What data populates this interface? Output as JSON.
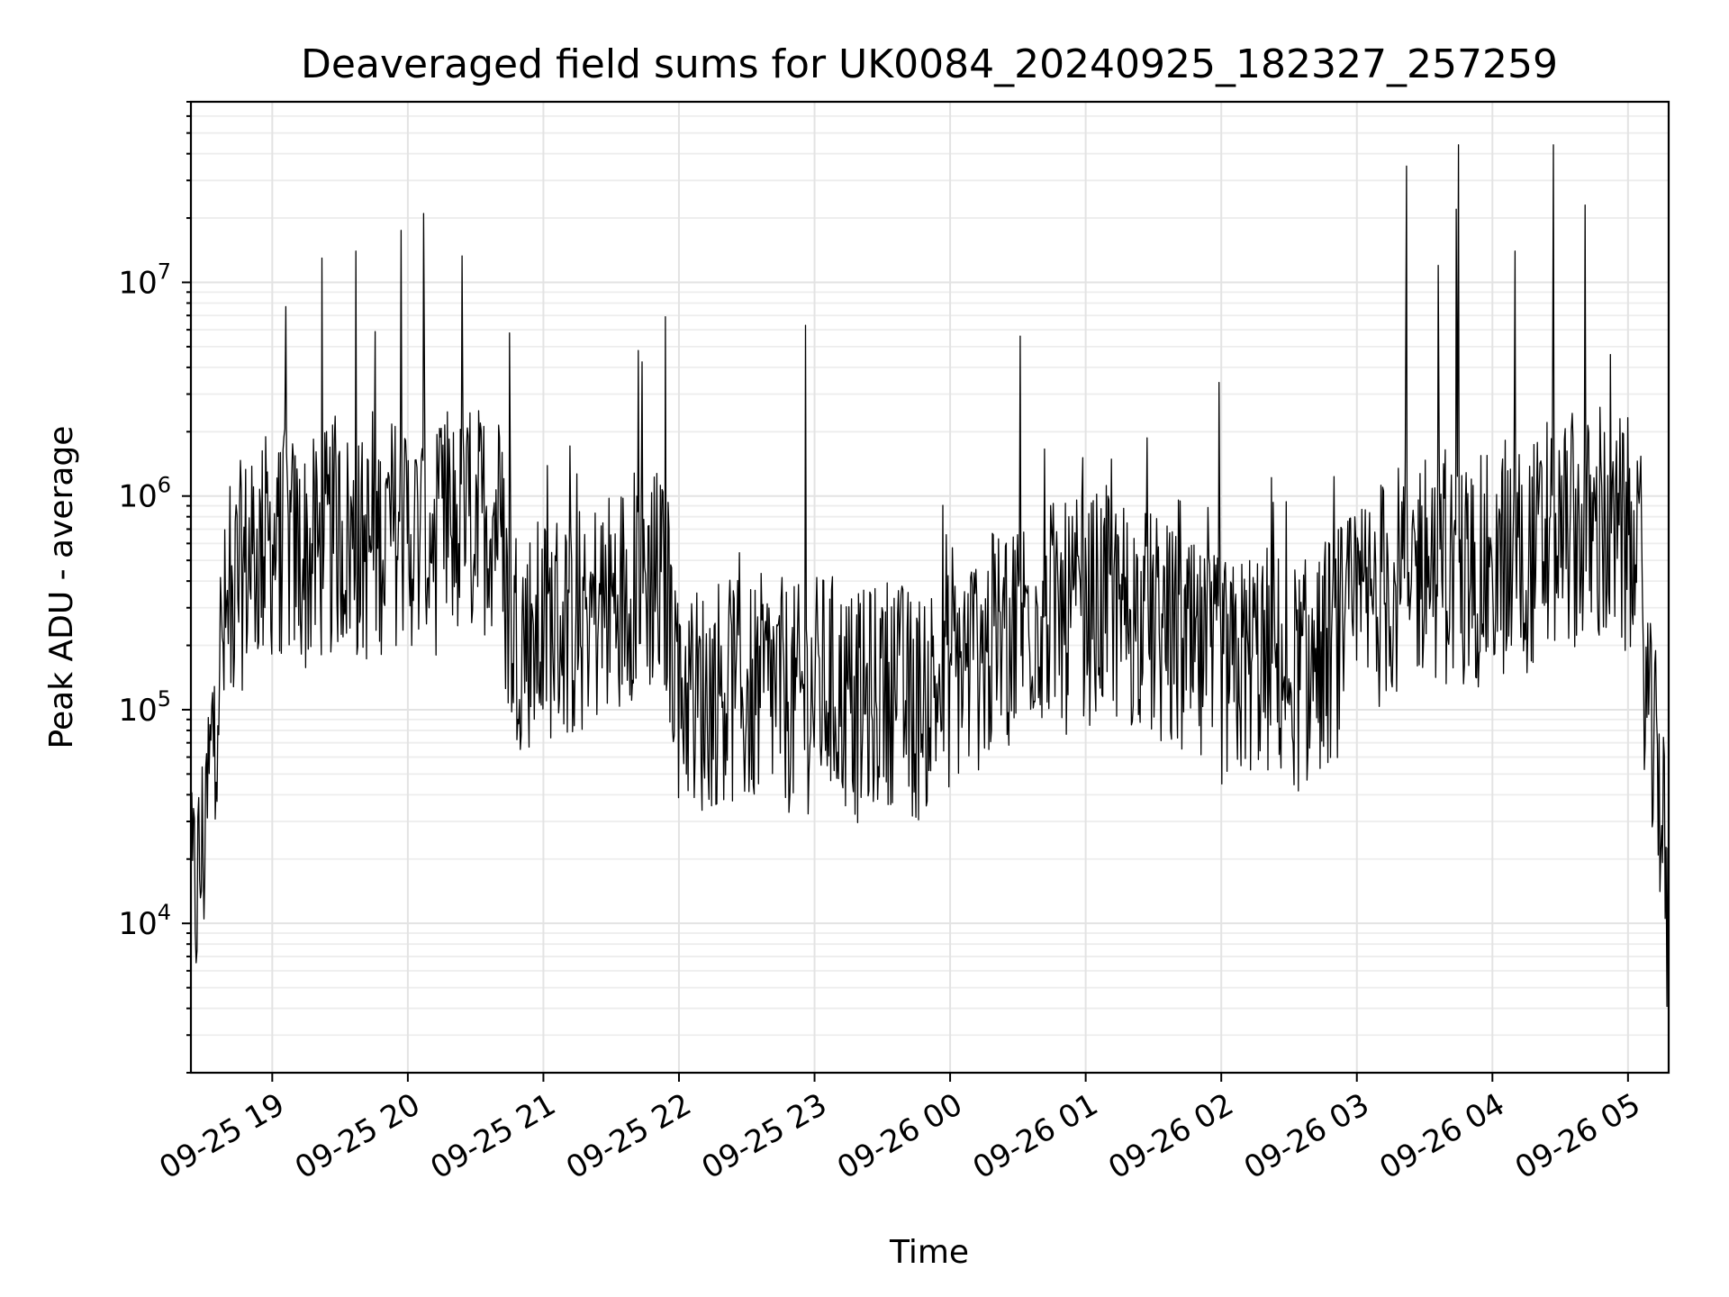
{
  "chart_data": {
    "type": "line",
    "title": "Deaveraged field sums for UK0084_20240925_182327_257259",
    "xlabel": "Time",
    "ylabel": "Peak ADU - average",
    "yscale": "log",
    "xlim": [
      "2024-09-25 18:24",
      "2024-09-26 05:18"
    ],
    "ylim": [
      2000,
      70000000
    ],
    "grid": true,
    "legend": "none",
    "x_ticks": [
      {
        "value": "2024-09-25 19:00",
        "label": "09-25 19"
      },
      {
        "value": "2024-09-25 20:00",
        "label": "09-25 20"
      },
      {
        "value": "2024-09-25 21:00",
        "label": "09-25 21"
      },
      {
        "value": "2024-09-25 22:00",
        "label": "09-25 22"
      },
      {
        "value": "2024-09-25 23:00",
        "label": "09-25 23"
      },
      {
        "value": "2024-09-26 00:00",
        "label": "09-26 00"
      },
      {
        "value": "2024-09-26 01:00",
        "label": "09-26 01"
      },
      {
        "value": "2024-09-26 02:00",
        "label": "09-26 02"
      },
      {
        "value": "2024-09-26 03:00",
        "label": "09-26 03"
      },
      {
        "value": "2024-09-26 04:00",
        "label": "09-26 04"
      },
      {
        "value": "2024-09-26 05:00",
        "label": "09-26 05"
      }
    ],
    "y_ticks": [
      {
        "value": 10000,
        "base": "10",
        "exp": "4"
      },
      {
        "value": 100000,
        "base": "10",
        "exp": "5"
      },
      {
        "value": 1000000,
        "base": "10",
        "exp": "6"
      },
      {
        "value": 10000000,
        "base": "10",
        "exp": "7"
      }
    ],
    "series": [
      {
        "color": "#000000",
        "x": [
          "2024-09-25 18:24",
          "2024-09-25 18:27",
          "2024-09-25 18:30",
          "2024-09-25 18:33",
          "2024-09-25 18:36",
          "2024-09-25 18:40",
          "2024-09-25 18:45",
          "2024-09-25 18:50",
          "2024-09-25 18:55",
          "2024-09-25 19:00",
          "2024-09-25 19:05",
          "2024-09-25 19:10",
          "2024-09-25 19:15",
          "2024-09-25 19:20",
          "2024-09-25 19:25",
          "2024-09-25 19:30",
          "2024-09-25 19:35",
          "2024-09-25 19:40",
          "2024-09-25 19:45",
          "2024-09-25 19:50",
          "2024-09-25 19:55",
          "2024-09-25 20:00",
          "2024-09-25 20:05",
          "2024-09-25 20:10",
          "2024-09-25 20:15",
          "2024-09-25 20:20",
          "2024-09-25 20:25",
          "2024-09-25 20:30",
          "2024-09-25 20:35",
          "2024-09-25 20:40",
          "2024-09-25 20:45",
          "2024-09-25 20:50",
          "2024-09-25 20:55",
          "2024-09-25 21:00",
          "2024-09-25 21:05",
          "2024-09-25 21:10",
          "2024-09-25 21:15",
          "2024-09-25 21:20",
          "2024-09-25 21:25",
          "2024-09-25 21:30",
          "2024-09-25 21:35",
          "2024-09-25 21:40",
          "2024-09-25 21:45",
          "2024-09-25 21:50",
          "2024-09-25 21:55",
          "2024-09-25 22:00",
          "2024-09-25 22:05",
          "2024-09-25 22:10",
          "2024-09-25 22:15",
          "2024-09-25 22:20",
          "2024-09-25 22:25",
          "2024-09-25 22:30",
          "2024-09-25 22:35",
          "2024-09-25 22:40",
          "2024-09-25 22:45",
          "2024-09-25 22:50",
          "2024-09-25 22:55",
          "2024-09-25 23:00",
          "2024-09-25 23:05",
          "2024-09-25 23:10",
          "2024-09-25 23:15",
          "2024-09-25 23:20",
          "2024-09-25 23:25",
          "2024-09-25 23:30",
          "2024-09-25 23:35",
          "2024-09-25 23:40",
          "2024-09-25 23:45",
          "2024-09-25 23:50",
          "2024-09-25 23:55",
          "2024-09-26 00:00",
          "2024-09-26 00:05",
          "2024-09-26 00:10",
          "2024-09-26 00:15",
          "2024-09-26 00:20",
          "2024-09-26 00:25",
          "2024-09-26 00:30",
          "2024-09-26 00:35",
          "2024-09-26 00:40",
          "2024-09-26 00:45",
          "2024-09-26 00:50",
          "2024-09-26 00:55",
          "2024-09-26 01:00",
          "2024-09-26 01:05",
          "2024-09-26 01:10",
          "2024-09-26 01:15",
          "2024-09-26 01:20",
          "2024-09-26 01:25",
          "2024-09-26 01:30",
          "2024-09-26 01:35",
          "2024-09-26 01:40",
          "2024-09-26 01:45",
          "2024-09-26 01:50",
          "2024-09-26 01:55",
          "2024-09-26 02:00",
          "2024-09-26 02:05",
          "2024-09-26 02:10",
          "2024-09-26 02:15",
          "2024-09-26 02:20",
          "2024-09-26 02:25",
          "2024-09-26 02:30",
          "2024-09-26 02:35",
          "2024-09-26 02:40",
          "2024-09-26 02:45",
          "2024-09-26 02:50",
          "2024-09-26 02:55",
          "2024-09-26 03:00",
          "2024-09-26 03:05",
          "2024-09-26 03:10",
          "2024-09-26 03:15",
          "2024-09-26 03:20",
          "2024-09-26 03:25",
          "2024-09-26 03:30",
          "2024-09-26 03:35",
          "2024-09-26 03:40",
          "2024-09-26 03:45",
          "2024-09-26 03:50",
          "2024-09-26 03:55",
          "2024-09-26 04:00",
          "2024-09-26 04:05",
          "2024-09-26 04:10",
          "2024-09-26 04:15",
          "2024-09-26 04:20",
          "2024-09-26 04:25",
          "2024-09-26 04:30",
          "2024-09-26 04:35",
          "2024-09-26 04:40",
          "2024-09-26 04:45",
          "2024-09-26 04:50",
          "2024-09-26 04:55",
          "2024-09-26 05:00",
          "2024-09-26 05:05",
          "2024-09-26 05:10",
          "2024-09-26 05:15",
          "2024-09-26 05:18"
        ],
        "y": [
          12000,
          15000,
          25000,
          60000,
          150000,
          250000,
          400000,
          500000,
          550000,
          600000,
          600000,
          550000,
          500000,
          550000,
          600000,
          650000,
          600000,
          550000,
          600000,
          650000,
          700000,
          700000,
          600000,
          600000,
          650000,
          700000,
          700000,
          750000,
          800000,
          850000,
          250000,
          230000,
          220000,
          230000,
          260000,
          250000,
          240000,
          280000,
          300000,
          320000,
          350000,
          400000,
          420000,
          400000,
          350000,
          130000,
          120000,
          110000,
          120000,
          130000,
          120000,
          110000,
          120000,
          130000,
          120000,
          110000,
          110000,
          120000,
          130000,
          120000,
          110000,
          100000,
          110000,
          120000,
          130000,
          110000,
          100000,
          120000,
          130000,
          150000,
          160000,
          170000,
          180000,
          200000,
          220000,
          250000,
          280000,
          300000,
          280000,
          260000,
          270000,
          290000,
          300000,
          320000,
          300000,
          280000,
          260000,
          240000,
          220000,
          200000,
          180000,
          160000,
          150000,
          150000,
          140000,
          160000,
          180000,
          170000,
          160000,
          150000,
          140000,
          150000,
          180000,
          200000,
          230000,
          260000,
          300000,
          350000,
          380000,
          420000,
          450000,
          500000,
          480000,
          450000,
          430000,
          420000,
          440000,
          460000,
          480000,
          500000,
          520000,
          550000,
          600000,
          650000,
          700000,
          680000,
          650000,
          620000,
          600000,
          580000,
          400000,
          70000,
          40000,
          6000
        ],
        "spikes": [
          {
            "x": "2024-09-25 19:06",
            "y": 7700000
          },
          {
            "x": "2024-09-25 19:22",
            "y": 13000000
          },
          {
            "x": "2024-09-25 19:37",
            "y": 14000000
          },
          {
            "x": "2024-09-25 19:57",
            "y": 17500000
          },
          {
            "x": "2024-09-25 20:07",
            "y": 21000000
          },
          {
            "x": "2024-09-25 20:24",
            "y": 13300000
          },
          {
            "x": "2024-09-25 20:45",
            "y": 5800000
          },
          {
            "x": "2024-09-25 21:42",
            "y": 4800000
          },
          {
            "x": "2024-09-25 21:54",
            "y": 6900000
          },
          {
            "x": "2024-09-25 22:56",
            "y": 6300000
          },
          {
            "x": "2024-09-26 00:31",
            "y": 5600000
          },
          {
            "x": "2024-09-26 01:59",
            "y": 3400000
          },
          {
            "x": "2024-09-26 03:22",
            "y": 35000000
          },
          {
            "x": "2024-09-26 03:36",
            "y": 12000000
          },
          {
            "x": "2024-09-26 03:45",
            "y": 44000000
          },
          {
            "x": "2024-09-26 03:44",
            "y": 22000000
          },
          {
            "x": "2024-09-26 04:10",
            "y": 14000000
          },
          {
            "x": "2024-09-26 04:27",
            "y": 44000000
          },
          {
            "x": "2024-09-26 04:41",
            "y": 23000000
          }
        ]
      }
    ]
  }
}
